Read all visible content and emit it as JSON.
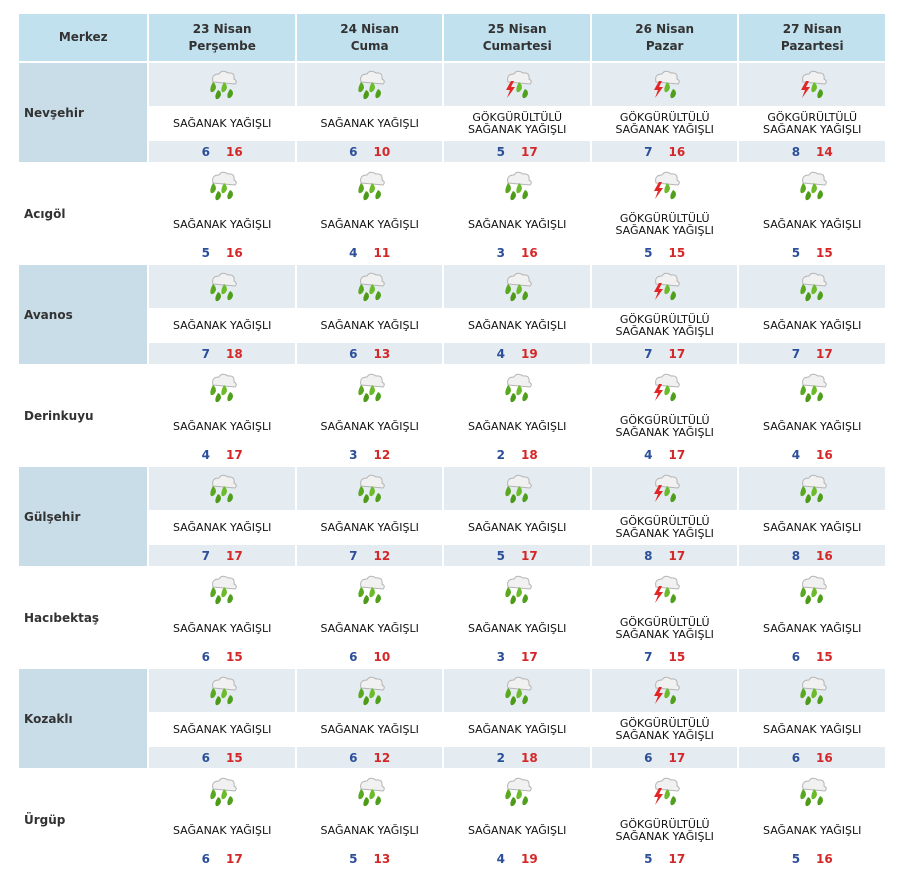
{
  "header": {
    "station_label": "Merkez",
    "days": [
      {
        "date": "23 Nisan",
        "weekday": "Perşembe"
      },
      {
        "date": "24 Nisan",
        "weekday": "Cuma"
      },
      {
        "date": "25 Nisan",
        "weekday": "Cumartesi"
      },
      {
        "date": "26 Nisan",
        "weekday": "Pazar"
      },
      {
        "date": "27 Nisan",
        "weekday": "Pazartesi"
      }
    ]
  },
  "rows": [
    {
      "city": "Nevşehir",
      "shaded": true,
      "days": [
        {
          "icon": "rain-shower-icon",
          "desc1": "SAĞANAK YAĞIŞLI",
          "desc2": "",
          "min": "6",
          "max": "16"
        },
        {
          "icon": "rain-shower-icon",
          "desc1": "SAĞANAK YAĞIŞLI",
          "desc2": "",
          "min": "6",
          "max": "10"
        },
        {
          "icon": "thunder-shower-icon",
          "desc1": "GÖKGÜRÜLTÜLÜ",
          "desc2": "SAĞANAK YAĞIŞLI",
          "min": "5",
          "max": "17"
        },
        {
          "icon": "thunder-shower-icon",
          "desc1": "GÖKGÜRÜLTÜLÜ",
          "desc2": "SAĞANAK YAĞIŞLI",
          "min": "7",
          "max": "16"
        },
        {
          "icon": "thunder-shower-icon",
          "desc1": "GÖKGÜRÜLTÜLÜ",
          "desc2": "SAĞANAK YAĞIŞLI",
          "min": "8",
          "max": "14"
        }
      ]
    },
    {
      "city": "Acıgöl",
      "shaded": false,
      "days": [
        {
          "icon": "rain-shower-icon",
          "desc1": "SAĞANAK YAĞIŞLI",
          "desc2": "",
          "min": "5",
          "max": "16"
        },
        {
          "icon": "rain-shower-icon",
          "desc1": "SAĞANAK YAĞIŞLI",
          "desc2": "",
          "min": "4",
          "max": "11"
        },
        {
          "icon": "rain-shower-icon",
          "desc1": "SAĞANAK YAĞIŞLI",
          "desc2": "",
          "min": "3",
          "max": "16"
        },
        {
          "icon": "thunder-shower-icon",
          "desc1": "GÖKGÜRÜLTÜLÜ",
          "desc2": "SAĞANAK YAĞIŞLI",
          "min": "5",
          "max": "15"
        },
        {
          "icon": "rain-shower-icon",
          "desc1": "SAĞANAK YAĞIŞLI",
          "desc2": "",
          "min": "5",
          "max": "15"
        }
      ]
    },
    {
      "city": "Avanos",
      "shaded": true,
      "days": [
        {
          "icon": "rain-shower-icon",
          "desc1": "SAĞANAK YAĞIŞLI",
          "desc2": "",
          "min": "7",
          "max": "18"
        },
        {
          "icon": "rain-shower-icon",
          "desc1": "SAĞANAK YAĞIŞLI",
          "desc2": "",
          "min": "6",
          "max": "13"
        },
        {
          "icon": "rain-shower-icon",
          "desc1": "SAĞANAK YAĞIŞLI",
          "desc2": "",
          "min": "4",
          "max": "19"
        },
        {
          "icon": "thunder-shower-icon",
          "desc1": "GÖKGÜRÜLTÜLÜ",
          "desc2": "SAĞANAK YAĞIŞLI",
          "min": "7",
          "max": "17"
        },
        {
          "icon": "rain-shower-icon",
          "desc1": "SAĞANAK YAĞIŞLI",
          "desc2": "",
          "min": "7",
          "max": "17"
        }
      ]
    },
    {
      "city": "Derinkuyu",
      "shaded": false,
      "days": [
        {
          "icon": "rain-shower-icon",
          "desc1": "SAĞANAK YAĞIŞLI",
          "desc2": "",
          "min": "4",
          "max": "17"
        },
        {
          "icon": "rain-shower-icon",
          "desc1": "SAĞANAK YAĞIŞLI",
          "desc2": "",
          "min": "3",
          "max": "12"
        },
        {
          "icon": "rain-shower-icon",
          "desc1": "SAĞANAK YAĞIŞLI",
          "desc2": "",
          "min": "2",
          "max": "18"
        },
        {
          "icon": "thunder-shower-icon",
          "desc1": "GÖKGÜRÜLTÜLÜ",
          "desc2": "SAĞANAK YAĞIŞLI",
          "min": "4",
          "max": "17"
        },
        {
          "icon": "rain-shower-icon",
          "desc1": "SAĞANAK YAĞIŞLI",
          "desc2": "",
          "min": "4",
          "max": "16"
        }
      ]
    },
    {
      "city": "Gülşehir",
      "shaded": true,
      "days": [
        {
          "icon": "rain-shower-icon",
          "desc1": "SAĞANAK YAĞIŞLI",
          "desc2": "",
          "min": "7",
          "max": "17"
        },
        {
          "icon": "rain-shower-icon",
          "desc1": "SAĞANAK YAĞIŞLI",
          "desc2": "",
          "min": "7",
          "max": "12"
        },
        {
          "icon": "rain-shower-icon",
          "desc1": "SAĞANAK YAĞIŞLI",
          "desc2": "",
          "min": "5",
          "max": "17"
        },
        {
          "icon": "thunder-shower-icon",
          "desc1": "GÖKGÜRÜLTÜLÜ",
          "desc2": "SAĞANAK YAĞIŞLI",
          "min": "8",
          "max": "17"
        },
        {
          "icon": "rain-shower-icon",
          "desc1": "SAĞANAK YAĞIŞLI",
          "desc2": "",
          "min": "8",
          "max": "16"
        }
      ]
    },
    {
      "city": "Hacıbektaş",
      "shaded": false,
      "days": [
        {
          "icon": "rain-shower-icon",
          "desc1": "SAĞANAK YAĞIŞLI",
          "desc2": "",
          "min": "6",
          "max": "15"
        },
        {
          "icon": "rain-shower-icon",
          "desc1": "SAĞANAK YAĞIŞLI",
          "desc2": "",
          "min": "6",
          "max": "10"
        },
        {
          "icon": "rain-shower-icon",
          "desc1": "SAĞANAK YAĞIŞLI",
          "desc2": "",
          "min": "3",
          "max": "17"
        },
        {
          "icon": "thunder-shower-icon",
          "desc1": "GÖKGÜRÜLTÜLÜ",
          "desc2": "SAĞANAK YAĞIŞLI",
          "min": "7",
          "max": "15"
        },
        {
          "icon": "rain-shower-icon",
          "desc1": "SAĞANAK YAĞIŞLI",
          "desc2": "",
          "min": "6",
          "max": "15"
        }
      ]
    },
    {
      "city": "Kozaklı",
      "shaded": true,
      "days": [
        {
          "icon": "rain-shower-icon",
          "desc1": "SAĞANAK YAĞIŞLI",
          "desc2": "",
          "min": "6",
          "max": "15"
        },
        {
          "icon": "rain-shower-icon",
          "desc1": "SAĞANAK YAĞIŞLI",
          "desc2": "",
          "min": "6",
          "max": "12"
        },
        {
          "icon": "rain-shower-icon",
          "desc1": "SAĞANAK YAĞIŞLI",
          "desc2": "",
          "min": "2",
          "max": "18"
        },
        {
          "icon": "thunder-shower-icon",
          "desc1": "GÖKGÜRÜLTÜLÜ",
          "desc2": "SAĞANAK YAĞIŞLI",
          "min": "6",
          "max": "17"
        },
        {
          "icon": "rain-shower-icon",
          "desc1": "SAĞANAK YAĞIŞLI",
          "desc2": "",
          "min": "6",
          "max": "16"
        }
      ]
    },
    {
      "city": "Ürgüp",
      "shaded": false,
      "days": [
        {
          "icon": "rain-shower-icon",
          "desc1": "SAĞANAK YAĞIŞLI",
          "desc2": "",
          "min": "6",
          "max": "17"
        },
        {
          "icon": "rain-shower-icon",
          "desc1": "SAĞANAK YAĞIŞLI",
          "desc2": "",
          "min": "5",
          "max": "13"
        },
        {
          "icon": "rain-shower-icon",
          "desc1": "SAĞANAK YAĞIŞLI",
          "desc2": "",
          "min": "4",
          "max": "19"
        },
        {
          "icon": "thunder-shower-icon",
          "desc1": "GÖKGÜRÜLTÜLÜ",
          "desc2": "SAĞANAK YAĞIŞLI",
          "min": "5",
          "max": "17"
        },
        {
          "icon": "rain-shower-icon",
          "desc1": "SAĞANAK YAĞIŞLI",
          "desc2": "",
          "min": "5",
          "max": "16"
        }
      ]
    }
  ]
}
